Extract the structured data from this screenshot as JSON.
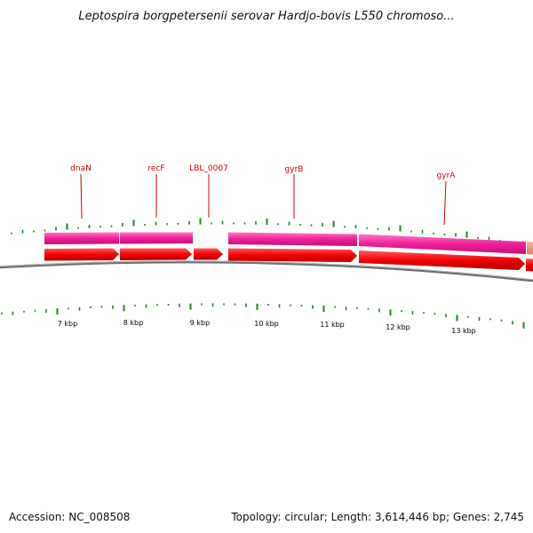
{
  "title": "Leptospira borgpetersenii serovar Hardjo-bovis L550 chromoso...",
  "footer": {
    "accession": "Accession: NC_008508",
    "summary": "Topology: circular; Length: 3,614,446 bp; Genes: 2,745"
  },
  "scale_labels": [
    "7 kbp",
    "8 kbp",
    "9 kbp",
    "10 kbp",
    "11 kbp",
    "12 kbp",
    "13 kbp"
  ],
  "gene_labels": [
    "dnaN",
    "recF",
    "LBL_0007",
    "gyrB",
    "gyrA"
  ],
  "colors": {
    "gene_label": "#d00000",
    "cds_feature": "#ff0000",
    "gene_feature": "#ee1493",
    "backbone": "#7a7a7a",
    "gc_ticks": "#1a8a1a"
  }
}
